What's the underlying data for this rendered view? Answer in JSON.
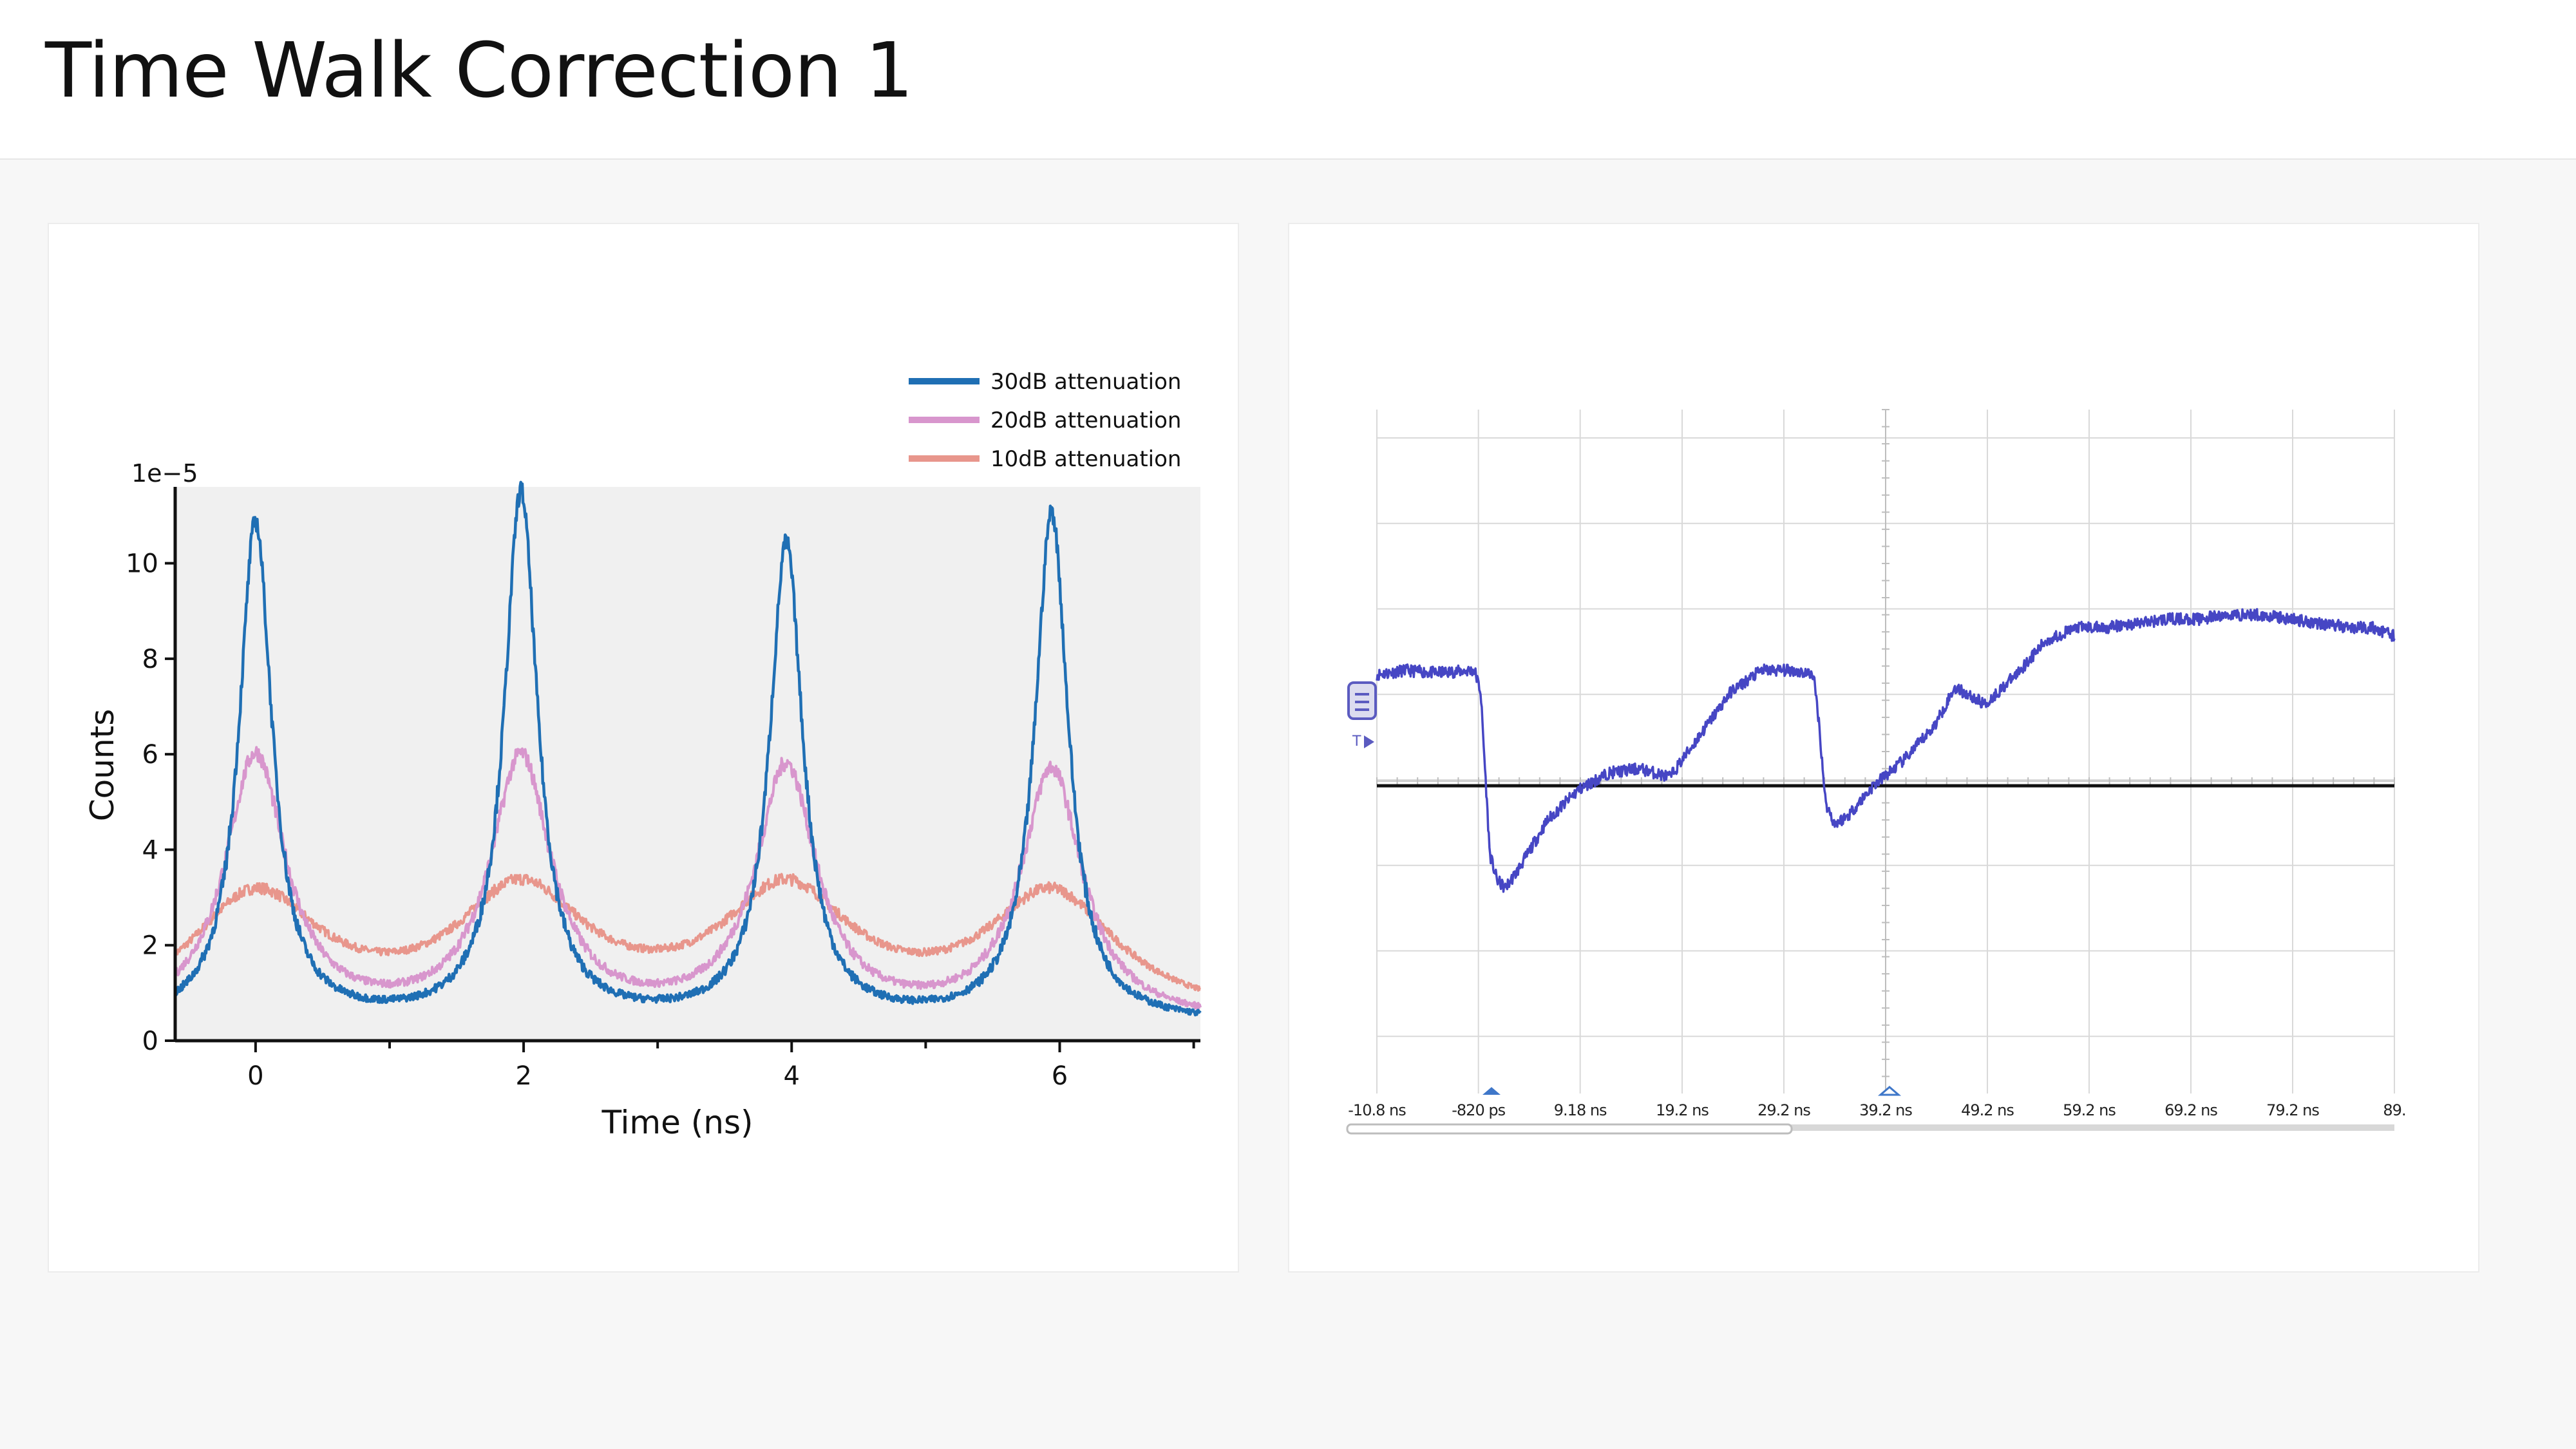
{
  "header": {
    "title": "Time Walk Correction 1"
  },
  "chart_data": [
    {
      "type": "line",
      "xlabel": "Time (ns)",
      "ylabel": "Counts",
      "y_scale_label": "1e−5",
      "xlim": [
        -0.6,
        7.05
      ],
      "ylim": [
        0,
        11.6
      ],
      "x_ticks": [
        0,
        2,
        4,
        6
      ],
      "x_minor_ticks": [
        1,
        3,
        5,
        7
      ],
      "y_ticks": [
        0,
        2,
        4,
        6,
        8,
        10
      ],
      "grid": false,
      "legend_position": "top-right",
      "plot_background": "#f0f0f0",
      "peak_centers": [
        0.0,
        1.98,
        3.96,
        5.94
      ],
      "baseline": 0.35,
      "series": [
        {
          "name": "30dB attenuation",
          "color": "#1f6fb4",
          "peak_heights": [
            10.8,
            11.4,
            10.3,
            11.0
          ],
          "fwhm_ns": 0.3,
          "noise": 0.4
        },
        {
          "name": "20dB attenuation",
          "color": "#d896cd",
          "peak_heights": [
            5.9,
            5.8,
            5.6,
            5.6
          ],
          "fwhm_ns": 0.55,
          "noise": 0.35
        },
        {
          "name": "10dB attenuation",
          "color": "#e8968c",
          "peak_heights": [
            2.9,
            2.9,
            2.9,
            2.9
          ],
          "fwhm_ns": 1.2,
          "noise": 0.25
        }
      ]
    },
    {
      "type": "line",
      "trace_color": "#4646c4",
      "reference_line_color": "#111111",
      "x_tick_labels": [
        "-10.8 ns",
        "-820 ps",
        "9.18 ns",
        "19.2 ns",
        "29.2 ns",
        "39.2 ns",
        "49.2 ns",
        "59.2 ns",
        "69.2 ns",
        "79.2 ns",
        "89."
      ],
      "x_ticks_ns": [
        -10.8,
        -0.82,
        9.18,
        19.2,
        29.2,
        39.2,
        49.2,
        59.2,
        69.2,
        79.2,
        89.2
      ],
      "xlim": [
        -10.8,
        89.2
      ],
      "ylim": [
        -4,
        4
      ],
      "reference_level": -0.4,
      "trigger_marker": "T",
      "trace_points": [
        [
          -10.8,
          0.9
        ],
        [
          -8,
          0.95
        ],
        [
          -5,
          0.92
        ],
        [
          -1.2,
          0.95
        ],
        [
          -0.6,
          0.7
        ],
        [
          0.3,
          -1.2
        ],
        [
          1,
          -1.5
        ],
        [
          1.8,
          -1.6
        ],
        [
          3,
          -1.4
        ],
        [
          6,
          -0.8
        ],
        [
          9,
          -0.45
        ],
        [
          12,
          -0.25
        ],
        [
          15,
          -0.2
        ],
        [
          18,
          -0.3
        ],
        [
          21,
          0.2
        ],
        [
          24,
          0.7
        ],
        [
          27,
          0.95
        ],
        [
          30,
          0.95
        ],
        [
          32.1,
          0.9
        ],
        [
          32.6,
          0.4
        ],
        [
          33.3,
          -0.6
        ],
        [
          34.2,
          -0.85
        ],
        [
          35.5,
          -0.75
        ],
        [
          38,
          -0.4
        ],
        [
          41,
          -0.1
        ],
        [
          44,
          0.3
        ],
        [
          46,
          0.75
        ],
        [
          49,
          0.55
        ],
        [
          52,
          0.9
        ],
        [
          55,
          1.3
        ],
        [
          58,
          1.45
        ],
        [
          61,
          1.45
        ],
        [
          64,
          1.5
        ],
        [
          67,
          1.55
        ],
        [
          70,
          1.55
        ],
        [
          73,
          1.6
        ],
        [
          76,
          1.6
        ],
        [
          79,
          1.55
        ],
        [
          82,
          1.5
        ],
        [
          85,
          1.45
        ],
        [
          87,
          1.45
        ],
        [
          89.2,
          1.35
        ]
      ]
    }
  ]
}
